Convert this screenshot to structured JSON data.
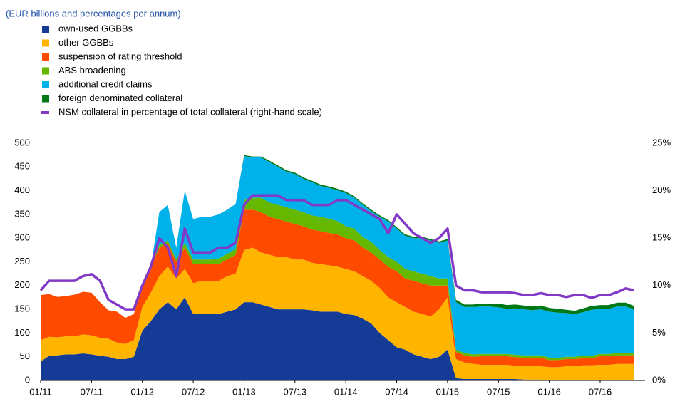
{
  "chart_data": {
    "type": "area",
    "subtitle": "(EUR billions and percentages per annum)",
    "stacked": true,
    "categories": [
      "01/11",
      null,
      null,
      null,
      null,
      null,
      "07/11",
      null,
      null,
      null,
      null,
      null,
      "01/12",
      null,
      null,
      null,
      null,
      null,
      "07/12",
      null,
      null,
      null,
      null,
      null,
      "01/13",
      null,
      null,
      null,
      null,
      null,
      "07/13",
      null,
      null,
      null,
      null,
      null,
      "01/14",
      null,
      null,
      null,
      null,
      null,
      "07/14",
      null,
      null,
      null,
      null,
      null,
      "01/15",
      null,
      null,
      null,
      null,
      null,
      "07/15",
      null,
      null,
      null,
      null,
      null,
      "01/16",
      null,
      null,
      null,
      null,
      null,
      "07/16",
      null,
      null,
      null,
      null
    ],
    "series": [
      {
        "name": "own-used GGBBs",
        "color": "#143c96",
        "values": [
          40,
          52,
          53,
          55,
          55,
          57,
          55,
          52,
          50,
          45,
          45,
          50,
          105,
          125,
          150,
          165,
          150,
          175,
          140,
          140,
          140,
          140,
          145,
          150,
          165,
          165,
          160,
          155,
          150,
          150,
          150,
          150,
          148,
          145,
          145,
          145,
          140,
          138,
          130,
          120,
          100,
          85,
          70,
          65,
          55,
          50,
          45,
          50,
          65,
          5,
          3,
          3,
          3,
          3,
          3,
          3,
          3,
          2,
          2,
          2,
          0,
          0,
          0,
          0,
          0,
          0,
          0,
          0,
          0,
          0,
          0
        ]
      },
      {
        "name": "other GGBBs",
        "color": "#ffb400",
        "values": [
          45,
          40,
          38,
          38,
          38,
          40,
          40,
          38,
          38,
          35,
          32,
          35,
          50,
          60,
          70,
          75,
          65,
          60,
          65,
          70,
          70,
          70,
          75,
          75,
          110,
          115,
          110,
          110,
          110,
          110,
          105,
          105,
          100,
          100,
          98,
          95,
          95,
          92,
          90,
          90,
          95,
          90,
          95,
          90,
          90,
          90,
          90,
          100,
          110,
          40,
          35,
          32,
          30,
          30,
          30,
          30,
          28,
          28,
          28,
          28,
          28,
          28,
          30,
          30,
          32,
          32,
          33,
          33,
          35,
          35,
          35
        ]
      },
      {
        "name": "suspension of rating threshold",
        "color": "#ff4b00",
        "values": [
          95,
          90,
          85,
          85,
          88,
          90,
          90,
          75,
          60,
          65,
          55,
          55,
          50,
          55,
          60,
          50,
          35,
          45,
          40,
          35,
          35,
          35,
          35,
          40,
          85,
          80,
          85,
          80,
          80,
          75,
          75,
          70,
          70,
          70,
          68,
          68,
          65,
          65,
          60,
          60,
          60,
          65,
          65,
          60,
          65,
          65,
          65,
          50,
          25,
          15,
          15,
          15,
          18,
          18,
          18,
          18,
          18,
          18,
          18,
          18,
          15,
          15,
          15,
          15,
          15,
          15,
          18,
          18,
          18,
          18,
          18
        ]
      },
      {
        "name": "ABS broadening",
        "color": "#65b800",
        "values": [
          0,
          0,
          0,
          0,
          0,
          0,
          0,
          0,
          0,
          0,
          0,
          0,
          0,
          0,
          5,
          5,
          5,
          10,
          10,
          10,
          10,
          12,
          12,
          12,
          20,
          25,
          30,
          30,
          30,
          30,
          30,
          30,
          30,
          30,
          30,
          28,
          25,
          25,
          22,
          22,
          20,
          20,
          20,
          20,
          20,
          20,
          20,
          15,
          15,
          5,
          5,
          5,
          5,
          5,
          5,
          5,
          5,
          5,
          5,
          5,
          5,
          5,
          5,
          5,
          5,
          5,
          5,
          5,
          5,
          5,
          5
        ]
      },
      {
        "name": "additional credit claims",
        "color": "#00b1ea",
        "values": [
          0,
          0,
          0,
          0,
          0,
          0,
          0,
          0,
          0,
          0,
          0,
          0,
          0,
          0,
          70,
          75,
          25,
          110,
          85,
          90,
          90,
          93,
          93,
          95,
          93,
          85,
          85,
          85,
          80,
          75,
          75,
          70,
          70,
          65,
          65,
          65,
          70,
          65,
          68,
          65,
          70,
          75,
          70,
          70,
          70,
          75,
          75,
          75,
          80,
          100,
          97,
          100,
          100,
          100,
          98,
          95,
          98,
          97,
          95,
          97,
          97,
          95,
          92,
          90,
          92,
          97,
          95,
          95,
          98,
          98,
          92
        ]
      },
      {
        "name": "foreign denominated collateral",
        "color": "#007816",
        "values": [
          0,
          0,
          0,
          0,
          0,
          0,
          0,
          0,
          0,
          0,
          0,
          0,
          0,
          0,
          0,
          0,
          0,
          0,
          0,
          0,
          0,
          0,
          0,
          0,
          2,
          2,
          2,
          3,
          3,
          3,
          3,
          3,
          3,
          3,
          3,
          3,
          3,
          3,
          3,
          3,
          3,
          3,
          3,
          3,
          3,
          3,
          3,
          3,
          3,
          5,
          5,
          5,
          6,
          6,
          8,
          8,
          8,
          8,
          8,
          8,
          8,
          8,
          7,
          7,
          8,
          8,
          8,
          8,
          8,
          8,
          7
        ]
      },
      {
        "name": "NSM collateral in percentage of total collateral (right-hand scale)",
        "color": "#8139c6",
        "type": "line",
        "axis": "y2",
        "values": [
          9.5,
          10.5,
          10.5,
          10.5,
          10.5,
          11,
          11.2,
          10.5,
          8.5,
          8,
          7.5,
          7.5,
          10,
          12,
          15,
          14,
          11,
          16,
          13.5,
          13.5,
          13.5,
          14,
          14,
          14.5,
          18.5,
          19.5,
          19.5,
          19.5,
          19.5,
          19,
          19,
          19,
          18.5,
          18.5,
          18.5,
          19,
          19,
          18.5,
          18,
          17.5,
          17,
          15.5,
          17.5,
          16.5,
          15.5,
          15,
          14.5,
          15,
          16,
          10,
          9.5,
          9.5,
          9.3,
          9.3,
          9.3,
          9.3,
          9.2,
          9,
          9,
          9.2,
          9,
          9,
          8.8,
          9,
          9,
          8.7,
          9,
          9,
          9.3,
          9.7,
          9.5
        ]
      }
    ],
    "ylim": [
      0,
      500
    ],
    "yticks": [
      0,
      50,
      100,
      150,
      200,
      250,
      300,
      350,
      400,
      450,
      500
    ],
    "y2lim": [
      0,
      25
    ],
    "y2ticks": [
      {
        "value": 0,
        "label": "0%"
      },
      {
        "value": 5,
        "label": "5%"
      },
      {
        "value": 10,
        "label": "10%"
      },
      {
        "value": 15,
        "label": "15%"
      },
      {
        "value": 20,
        "label": "20%"
      },
      {
        "value": 25,
        "label": "25%"
      }
    ],
    "legend": "top-left"
  }
}
